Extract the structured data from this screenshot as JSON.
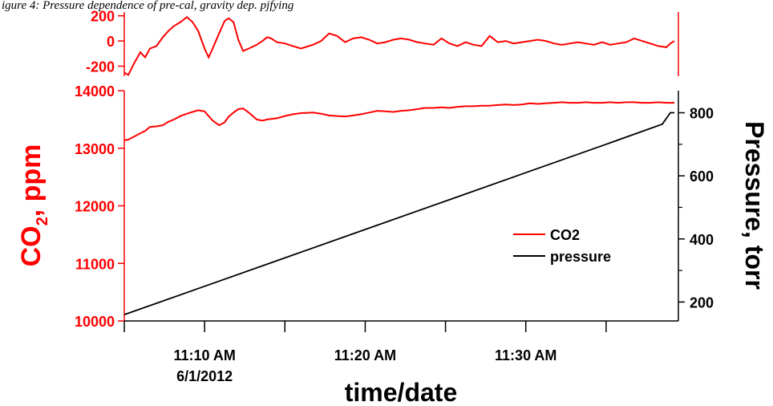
{
  "caption": "igure 4: Pressure dependence of pre-cal, gravity dep. pjfying",
  "colors": {
    "co2": "#ff0000",
    "pressure": "#000000",
    "axis_left": "#ff0000",
    "axis_right": "#000000"
  },
  "chart_data": [
    {
      "type": "line",
      "panel": "residual",
      "ylim": [
        -280,
        230
      ],
      "yticks": [
        200,
        0,
        -200
      ],
      "ytick_labels": [
        "200",
        "0",
        "-200"
      ],
      "series": [
        {
          "key": "co2_residual",
          "color": "#ff0000",
          "points": [
            [
              0,
              -250
            ],
            [
              0.5,
              -270
            ],
            [
              1.2,
              -180
            ],
            [
              2.0,
              -90
            ],
            [
              2.6,
              -130
            ],
            [
              3.2,
              -60
            ],
            [
              4.0,
              -40
            ],
            [
              4.8,
              30
            ],
            [
              5.5,
              80
            ],
            [
              6.2,
              120
            ],
            [
              7.0,
              150
            ],
            [
              7.8,
              190
            ],
            [
              8.5,
              150
            ],
            [
              9.2,
              80
            ],
            [
              10.0,
              -60
            ],
            [
              10.5,
              -130
            ],
            [
              11.0,
              -60
            ],
            [
              11.8,
              60
            ],
            [
              12.5,
              160
            ],
            [
              13.0,
              180
            ],
            [
              13.6,
              150
            ],
            [
              14.2,
              10
            ],
            [
              14.8,
              -80
            ],
            [
              15.5,
              -60
            ],
            [
              16.5,
              -30
            ],
            [
              17.2,
              0
            ],
            [
              17.8,
              30
            ],
            [
              18.3,
              20
            ],
            [
              19.0,
              -10
            ],
            [
              20.0,
              -20
            ],
            [
              21.0,
              -40
            ],
            [
              22.0,
              -60
            ],
            [
              23.5,
              -30
            ],
            [
              24.5,
              0
            ],
            [
              25.5,
              60
            ],
            [
              26.5,
              40
            ],
            [
              27.5,
              -10
            ],
            [
              28.5,
              20
            ],
            [
              29.5,
              30
            ],
            [
              30.5,
              10
            ],
            [
              31.5,
              -20
            ],
            [
              32.5,
              -10
            ],
            [
              33.5,
              10
            ],
            [
              34.5,
              20
            ],
            [
              35.5,
              10
            ],
            [
              36.5,
              -10
            ],
            [
              37.5,
              -20
            ],
            [
              38.5,
              -30
            ],
            [
              39.5,
              20
            ],
            [
              40.5,
              -20
            ],
            [
              41.5,
              -40
            ],
            [
              42.5,
              -10
            ],
            [
              43.5,
              -30
            ],
            [
              44.5,
              -40
            ],
            [
              45.5,
              40
            ],
            [
              46.5,
              -10
            ],
            [
              47.5,
              0
            ],
            [
              48.5,
              -20
            ],
            [
              49.5,
              -10
            ],
            [
              50.5,
              0
            ],
            [
              51.5,
              10
            ],
            [
              52.5,
              0
            ],
            [
              53.5,
              -20
            ],
            [
              54.5,
              -30
            ],
            [
              55.5,
              -20
            ],
            [
              56.5,
              -10
            ],
            [
              57.5,
              -20
            ],
            [
              58.5,
              -30
            ],
            [
              59.5,
              -10
            ],
            [
              60.5,
              -30
            ],
            [
              61.5,
              -20
            ],
            [
              62.5,
              -10
            ],
            [
              63.5,
              20
            ],
            [
              64.5,
              0
            ],
            [
              65.5,
              -20
            ],
            [
              66.5,
              -40
            ],
            [
              67.5,
              -50
            ],
            [
              68.0,
              -20
            ],
            [
              68.5,
              0
            ]
          ]
        }
      ]
    },
    {
      "type": "line",
      "panel": "main",
      "xlabel": "time/date",
      "ylabel_left": "CO2, ppm",
      "ylabel_right": "Pressure, torr",
      "xticks": [
        {
          "pos": 10,
          "lines": [
            "11:10 AM",
            "6/1/2012"
          ]
        },
        {
          "pos": 30,
          "lines": [
            "11:20 AM"
          ]
        },
        {
          "pos": 50,
          "lines": [
            "11:30 AM"
          ]
        }
      ],
      "x_minor_ticks": [
        0,
        20,
        40,
        60
      ],
      "xlim": [
        0,
        69
      ],
      "ylim_left": [
        10000,
        14000
      ],
      "yticks_left": [
        10000,
        11000,
        12000,
        13000,
        14000
      ],
      "ylim_right": [
        140,
        870
      ],
      "yticks_right": [
        200,
        400,
        600,
        800
      ],
      "legend_position": "center-right",
      "series": [
        {
          "name": "CO2",
          "axis": "left",
          "color": "#ff0000",
          "points": [
            [
              0,
              13140
            ],
            [
              0.5,
              13150
            ],
            [
              1.2,
              13200
            ],
            [
              2.0,
              13260
            ],
            [
              2.6,
              13300
            ],
            [
              3.2,
              13370
            ],
            [
              4.0,
              13380
            ],
            [
              4.8,
              13400
            ],
            [
              5.5,
              13460
            ],
            [
              6.2,
              13500
            ],
            [
              7.0,
              13560
            ],
            [
              7.8,
              13600
            ],
            [
              8.5,
              13630
            ],
            [
              9.2,
              13660
            ],
            [
              10.0,
              13640
            ],
            [
              10.5,
              13560
            ],
            [
              11.0,
              13480
            ],
            [
              11.8,
              13400
            ],
            [
              12.5,
              13450
            ],
            [
              13.0,
              13550
            ],
            [
              13.6,
              13620
            ],
            [
              14.2,
              13680
            ],
            [
              14.8,
              13690
            ],
            [
              15.5,
              13620
            ],
            [
              16.5,
              13500
            ],
            [
              17.2,
              13480
            ],
            [
              17.8,
              13500
            ],
            [
              18.3,
              13510
            ],
            [
              19.0,
              13520
            ],
            [
              20.0,
              13560
            ],
            [
              21.0,
              13590
            ],
            [
              22.0,
              13610
            ],
            [
              23.5,
              13620
            ],
            [
              24.5,
              13600
            ],
            [
              25.5,
              13570
            ],
            [
              26.5,
              13560
            ],
            [
              27.5,
              13550
            ],
            [
              28.5,
              13570
            ],
            [
              29.5,
              13590
            ],
            [
              30.5,
              13620
            ],
            [
              31.5,
              13650
            ],
            [
              32.5,
              13640
            ],
            [
              33.5,
              13630
            ],
            [
              34.5,
              13650
            ],
            [
              35.5,
              13660
            ],
            [
              36.5,
              13680
            ],
            [
              37.5,
              13700
            ],
            [
              38.5,
              13700
            ],
            [
              39.5,
              13710
            ],
            [
              40.5,
              13700
            ],
            [
              41.5,
              13720
            ],
            [
              42.5,
              13730
            ],
            [
              43.5,
              13730
            ],
            [
              44.5,
              13740
            ],
            [
              45.5,
              13740
            ],
            [
              46.5,
              13750
            ],
            [
              47.5,
              13760
            ],
            [
              48.5,
              13750
            ],
            [
              49.5,
              13760
            ],
            [
              50.5,
              13780
            ],
            [
              51.5,
              13770
            ],
            [
              52.5,
              13780
            ],
            [
              53.5,
              13790
            ],
            [
              54.5,
              13800
            ],
            [
              55.5,
              13790
            ],
            [
              56.5,
              13790
            ],
            [
              57.5,
              13800
            ],
            [
              58.5,
              13790
            ],
            [
              59.5,
              13790
            ],
            [
              60.5,
              13800
            ],
            [
              61.5,
              13790
            ],
            [
              62.5,
              13800
            ],
            [
              63.5,
              13800
            ],
            [
              64.5,
              13790
            ],
            [
              65.5,
              13790
            ],
            [
              66.5,
              13800
            ],
            [
              67.5,
              13790
            ],
            [
              68.0,
              13790
            ],
            [
              68.5,
              13790
            ]
          ]
        },
        {
          "name": "pressure",
          "axis": "right",
          "color": "#000000",
          "points": [
            [
              0,
              160
            ],
            [
              4,
              196
            ],
            [
              10,
              250
            ],
            [
              20,
              340
            ],
            [
              30,
              430
            ],
            [
              40,
              520
            ],
            [
              50,
              610
            ],
            [
              60,
              700
            ],
            [
              67,
              764
            ],
            [
              68,
              800
            ],
            [
              68.5,
              800
            ]
          ]
        }
      ]
    }
  ]
}
